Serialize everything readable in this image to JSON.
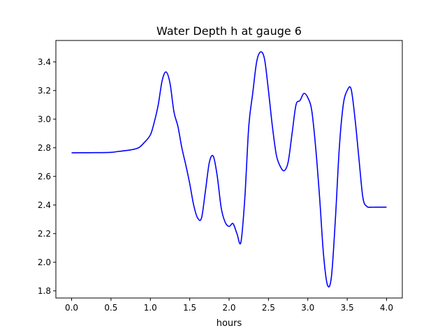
{
  "chart_data": {
    "type": "line",
    "title": "Water Depth h at gauge 6",
    "xlabel": "hours",
    "ylabel": "",
    "xlim": [
      -0.2,
      4.2
    ],
    "ylim": [
      1.75,
      3.55
    ],
    "xticks": [
      0.0,
      0.5,
      1.0,
      1.5,
      2.0,
      2.5,
      3.0,
      3.5,
      4.0
    ],
    "xtick_labels": [
      "0.0",
      "0.5",
      "1.0",
      "1.5",
      "2.0",
      "2.5",
      "3.0",
      "3.5",
      "4.0"
    ],
    "yticks": [
      1.8,
      2.0,
      2.2,
      2.4,
      2.6,
      2.8,
      3.0,
      3.2,
      3.4
    ],
    "ytick_labels": [
      "1.8",
      "2.0",
      "2.2",
      "2.4",
      "2.6",
      "2.8",
      "3.0",
      "3.2",
      "3.4"
    ],
    "grid": false,
    "series": [
      {
        "color": "#0000ff",
        "x": [
          0.0,
          0.3,
          0.5,
          0.6,
          0.75,
          0.85,
          0.92,
          1.0,
          1.05,
          1.1,
          1.15,
          1.2,
          1.25,
          1.3,
          1.35,
          1.4,
          1.45,
          1.5,
          1.55,
          1.6,
          1.65,
          1.7,
          1.75,
          1.8,
          1.85,
          1.9,
          1.95,
          2.0,
          2.05,
          2.1,
          2.15,
          2.2,
          2.25,
          2.3,
          2.35,
          2.4,
          2.45,
          2.5,
          2.55,
          2.6,
          2.65,
          2.7,
          2.75,
          2.8,
          2.85,
          2.9,
          2.95,
          3.0,
          3.05,
          3.1,
          3.15,
          3.2,
          3.25,
          3.3,
          3.35,
          3.4,
          3.45,
          3.5,
          3.55,
          3.6,
          3.65,
          3.7,
          3.75,
          3.8,
          3.85,
          3.9,
          3.95,
          4.0
        ],
        "y": [
          2.765,
          2.766,
          2.768,
          2.775,
          2.785,
          2.8,
          2.835,
          2.89,
          2.98,
          3.1,
          3.27,
          3.33,
          3.25,
          3.05,
          2.95,
          2.8,
          2.68,
          2.55,
          2.4,
          2.31,
          2.31,
          2.5,
          2.7,
          2.74,
          2.6,
          2.38,
          2.28,
          2.25,
          2.27,
          2.2,
          2.14,
          2.45,
          2.95,
          3.18,
          3.4,
          3.47,
          3.42,
          3.2,
          2.95,
          2.75,
          2.67,
          2.64,
          2.7,
          2.9,
          3.1,
          3.13,
          3.18,
          3.15,
          3.06,
          2.8,
          2.45,
          2.05,
          1.84,
          1.9,
          2.3,
          2.8,
          3.1,
          3.2,
          3.21,
          3.0,
          2.72,
          2.45,
          2.39,
          2.385,
          2.385,
          2.385,
          2.385,
          2.385
        ]
      }
    ]
  }
}
